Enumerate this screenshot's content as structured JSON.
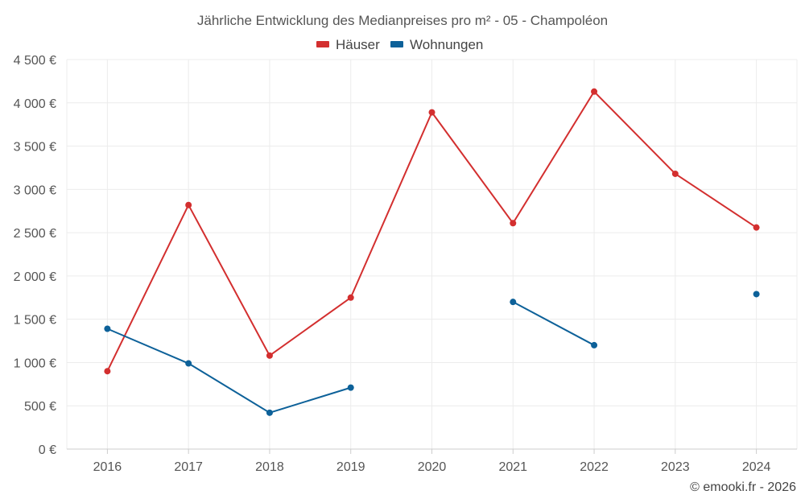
{
  "chart_data": {
    "type": "line",
    "title": "Jährliche Entwicklung des Medianpreises pro m² - 05 - Champoléon",
    "xlabel": "",
    "ylabel": "",
    "categories": [
      "2016",
      "2017",
      "2018",
      "2019",
      "2020",
      "2021",
      "2022",
      "2023",
      "2024"
    ],
    "ylim": [
      0,
      4500
    ],
    "yticks": [
      0,
      500,
      1000,
      1500,
      2000,
      2500,
      3000,
      3500,
      4000,
      4500
    ],
    "ytick_labels": [
      "0 €",
      "500 €",
      "1 000 €",
      "1 500 €",
      "2 000 €",
      "2 500 €",
      "3 000 €",
      "3 500 €",
      "4 000 €",
      "4 500 €"
    ],
    "grid": true,
    "legend_position": "top-center",
    "series": [
      {
        "name": "Häuser",
        "color": "#d32f2f",
        "values": [
          900,
          2820,
          1080,
          1750,
          3890,
          2610,
          4130,
          3180,
          2560
        ]
      },
      {
        "name": "Wohnungen",
        "color": "#0d6199",
        "values": [
          1390,
          990,
          420,
          710,
          null,
          1700,
          1200,
          null,
          1790
        ]
      }
    ]
  },
  "credit": "© emooki.fr - 2026"
}
